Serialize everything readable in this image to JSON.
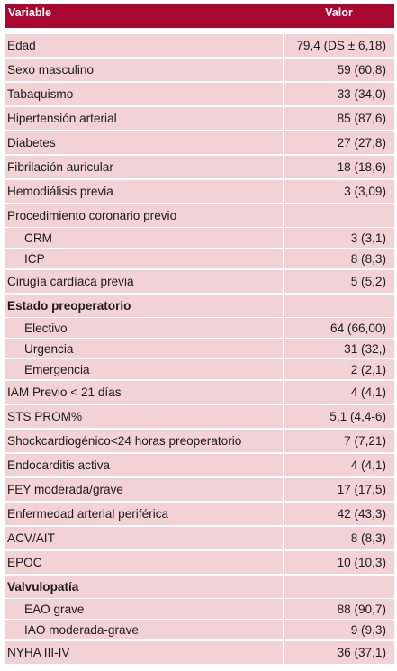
{
  "table": {
    "header": {
      "variable": "Variable",
      "value": "Valor"
    },
    "rows": [
      {
        "label": "Edad",
        "value": "79,4 (DS ± 6,18)",
        "kind": "row"
      },
      {
        "label": "Sexo masculino",
        "value": "59 (60,8)",
        "kind": "row"
      },
      {
        "label": "Tabaquismo",
        "value": "33 (34,0)",
        "kind": "row"
      },
      {
        "label": "Hipertensión arterial",
        "value": "85 (87,6)",
        "kind": "row"
      },
      {
        "label": "Diabetes",
        "value": "27 (27,8)",
        "kind": "row"
      },
      {
        "label": "Fibrilación auricular",
        "value": "18 (18,6)",
        "kind": "row"
      },
      {
        "label": "Hemodiálisis previa",
        "value": "3 (3,09)",
        "kind": "row"
      },
      {
        "label": "Procedimiento coronario previo",
        "value": "",
        "kind": "row"
      },
      {
        "label": "CRM",
        "value": "3 (3,1)",
        "kind": "sub"
      },
      {
        "label": "ICP",
        "value": "8 (8,3)",
        "kind": "sub"
      },
      {
        "label": "Cirugía cardíaca previa",
        "value": "5 (5,2)",
        "kind": "row"
      },
      {
        "label": "Estado preoperatorio",
        "value": "",
        "kind": "hdr"
      },
      {
        "label": "Electivo",
        "value": "64 (66,00)",
        "kind": "sub"
      },
      {
        "label": "Urgencia",
        "value": "31 (32,)",
        "kind": "sub"
      },
      {
        "label": "Emergencia",
        "value": "2 (2,1)",
        "kind": "sub"
      },
      {
        "label": "IAM Previo < 21 días",
        "value": "4 (4,1)",
        "kind": "row"
      },
      {
        "label": "STS PROM%",
        "value": "5,1 (4,4-6)",
        "kind": "row"
      },
      {
        "label": "Shockcardiogénico<24 horas preoperatorio",
        "value": "7 (7,21)",
        "kind": "row"
      },
      {
        "label": "Endocarditis activa",
        "value": "4 (4,1)",
        "kind": "row"
      },
      {
        "label": "FEY moderada/grave",
        "value": "17 (17,5)",
        "kind": "row"
      },
      {
        "label": "Enfermedad arterial periférica",
        "value": "42 (43,3)",
        "kind": "row"
      },
      {
        "label": "ACV/AIT",
        "value": "8 (8,3)",
        "kind": "row"
      },
      {
        "label": "EPOC",
        "value": "10 (10,3)",
        "kind": "row"
      },
      {
        "label": "Valvulopatía",
        "value": "",
        "kind": "hdr"
      },
      {
        "label": "EAO grave",
        "value": "88 (90,7)",
        "kind": "sub"
      },
      {
        "label": "IAO moderada-grave",
        "value": "9 (9,3)",
        "kind": "sub"
      },
      {
        "label": "NYHA III-IV",
        "value": "36 (37,1)",
        "kind": "row"
      }
    ]
  },
  "colors": {
    "header_background": "#a8082f",
    "row_background": "#f2d1d7"
  }
}
